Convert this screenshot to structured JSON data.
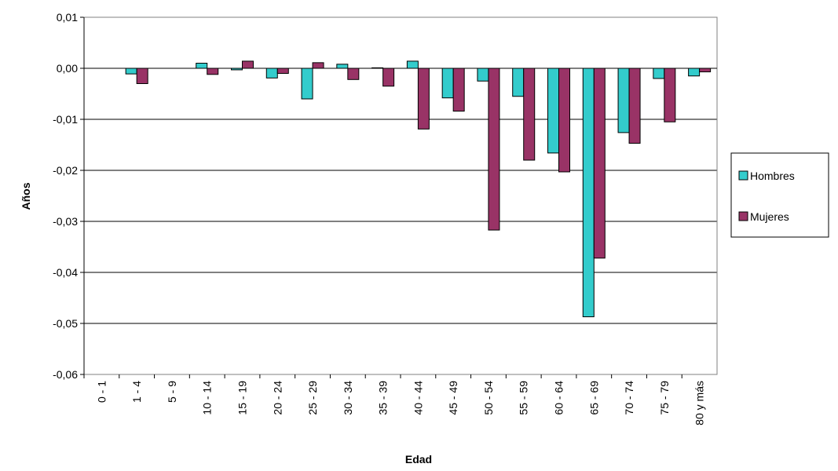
{
  "chart_data": {
    "type": "bar",
    "x_label": "Edad",
    "y_label": "Años",
    "categories": [
      "0 - 1",
      "1 - 4",
      "5 - 9",
      "10 - 14",
      "15 - 19",
      "20 - 24",
      "25 - 29",
      "30 - 34",
      "35 - 39",
      "40 - 44",
      "45 - 49",
      "50 - 54",
      "55 - 59",
      "60 - 64",
      "65 - 69",
      "70 - 74",
      "75 - 79",
      "80 y más"
    ],
    "series": [
      {
        "name": "Hombres",
        "color": "#33cccc",
        "values": [
          0,
          -0.0011,
          0,
          0.001,
          -0.0003,
          -0.0019,
          -0.006,
          0.0008,
          0.0001,
          0.0014,
          -0.0058,
          -0.0025,
          -0.0055,
          -0.0166,
          -0.0487,
          -0.0126,
          -0.002,
          -0.0015
        ]
      },
      {
        "name": "Mujeres",
        "color": "#993366",
        "values": [
          0,
          -0.003,
          0,
          -0.0012,
          0.0014,
          -0.001,
          0.0011,
          -0.0022,
          -0.0035,
          -0.0119,
          -0.0084,
          -0.0317,
          -0.018,
          -0.0203,
          -0.0372,
          -0.0147,
          -0.0105,
          -0.0007
        ]
      }
    ],
    "ylim": [
      -0.06,
      0.01
    ],
    "yticks": [
      {
        "value": -0.06,
        "label": "-0,06"
      },
      {
        "value": -0.05,
        "label": "-0,05"
      },
      {
        "value": -0.04,
        "label": "-0,04"
      },
      {
        "value": -0.03,
        "label": "-0,03"
      },
      {
        "value": -0.02,
        "label": "-0,02"
      },
      {
        "value": -0.01,
        "label": "-0,01"
      },
      {
        "value": 0,
        "label": "0,00"
      },
      {
        "value": 0.01,
        "label": "0,01"
      }
    ],
    "grid": true,
    "legend": "right"
  }
}
